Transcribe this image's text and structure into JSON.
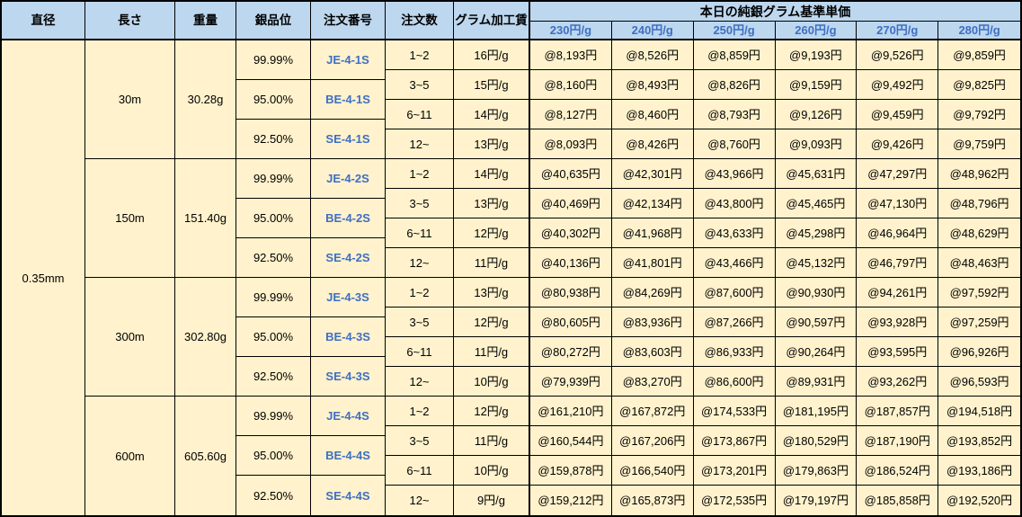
{
  "table": {
    "title": "本日の純銀グラム基準単価",
    "headers": {
      "diameter": "直径",
      "length": "長さ",
      "weight": "重量",
      "purity": "銀品位",
      "order_no": "注文番号",
      "order_qty": "注文数",
      "gram_fee": "グラム加工賃",
      "base_price_group": "本日の純銀グラム基準単価",
      "price_columns": [
        "230円/g",
        "240円/g",
        "250円/g",
        "260円/g",
        "270円/g",
        "280円/g"
      ]
    },
    "diameter_value": "0.35mm",
    "groups": [
      {
        "length": "30m",
        "weight": "30.28g",
        "purities": [
          {
            "purity": "99.99%",
            "order_no": "JE-4-1S"
          },
          {
            "purity": "95.00%",
            "order_no": "BE-4-1S"
          },
          {
            "purity": "92.50%",
            "order_no": "SE-4-1S"
          }
        ],
        "rows": [
          {
            "qty": "1~2",
            "fee": "16円/g",
            "prices": [
              "@8,193円",
              "@8,526円",
              "@8,859円",
              "@9,193円",
              "@9,526円",
              "@9,859円"
            ]
          },
          {
            "qty": "3~5",
            "fee": "15円/g",
            "prices": [
              "@8,160円",
              "@8,493円",
              "@8,826円",
              "@9,159円",
              "@9,492円",
              "@9,825円"
            ]
          },
          {
            "qty": "6~11",
            "fee": "14円/g",
            "prices": [
              "@8,127円",
              "@8,460円",
              "@8,793円",
              "@9,126円",
              "@9,459円",
              "@9,792円"
            ]
          },
          {
            "qty": "12~",
            "fee": "13円/g",
            "prices": [
              "@8,093円",
              "@8,426円",
              "@8,760円",
              "@9,093円",
              "@9,426円",
              "@9,759円"
            ]
          }
        ]
      },
      {
        "length": "150m",
        "weight": "151.40g",
        "purities": [
          {
            "purity": "99.99%",
            "order_no": "JE-4-2S"
          },
          {
            "purity": "95.00%",
            "order_no": "BE-4-2S"
          },
          {
            "purity": "92.50%",
            "order_no": "SE-4-2S"
          }
        ],
        "rows": [
          {
            "qty": "1~2",
            "fee": "14円/g",
            "prices": [
              "@40,635円",
              "@42,301円",
              "@43,966円",
              "@45,631円",
              "@47,297円",
              "@48,962円"
            ]
          },
          {
            "qty": "3~5",
            "fee": "13円/g",
            "prices": [
              "@40,469円",
              "@42,134円",
              "@43,800円",
              "@45,465円",
              "@47,130円",
              "@48,796円"
            ]
          },
          {
            "qty": "6~11",
            "fee": "12円/g",
            "prices": [
              "@40,302円",
              "@41,968円",
              "@43,633円",
              "@45,298円",
              "@46,964円",
              "@48,629円"
            ]
          },
          {
            "qty": "12~",
            "fee": "11円/g",
            "prices": [
              "@40,136円",
              "@41,801円",
              "@43,466円",
              "@45,132円",
              "@46,797円",
              "@48,463円"
            ]
          }
        ]
      },
      {
        "length": "300m",
        "weight": "302.80g",
        "purities": [
          {
            "purity": "99.99%",
            "order_no": "JE-4-3S"
          },
          {
            "purity": "95.00%",
            "order_no": "BE-4-3S"
          },
          {
            "purity": "92.50%",
            "order_no": "SE-4-3S"
          }
        ],
        "rows": [
          {
            "qty": "1~2",
            "fee": "13円/g",
            "prices": [
              "@80,938円",
              "@84,269円",
              "@87,600円",
              "@90,930円",
              "@94,261円",
              "@97,592円"
            ]
          },
          {
            "qty": "3~5",
            "fee": "12円/g",
            "prices": [
              "@80,605円",
              "@83,936円",
              "@87,266円",
              "@90,597円",
              "@93,928円",
              "@97,259円"
            ]
          },
          {
            "qty": "6~11",
            "fee": "11円/g",
            "prices": [
              "@80,272円",
              "@83,603円",
              "@86,933円",
              "@90,264円",
              "@93,595円",
              "@96,926円"
            ]
          },
          {
            "qty": "12~",
            "fee": "10円/g",
            "prices": [
              "@79,939円",
              "@83,270円",
              "@86,600円",
              "@89,931円",
              "@93,262円",
              "@96,593円"
            ]
          }
        ]
      },
      {
        "length": "600m",
        "weight": "605.60g",
        "purities": [
          {
            "purity": "99.99%",
            "order_no": "JE-4-4S"
          },
          {
            "purity": "95.00%",
            "order_no": "BE-4-4S"
          },
          {
            "purity": "92.50%",
            "order_no": "SE-4-4S"
          }
        ],
        "rows": [
          {
            "qty": "1~2",
            "fee": "12円/g",
            "prices": [
              "@161,210円",
              "@167,872円",
              "@174,533円",
              "@181,195円",
              "@187,857円",
              "@194,518円"
            ]
          },
          {
            "qty": "3~5",
            "fee": "11円/g",
            "prices": [
              "@160,544円",
              "@167,206円",
              "@173,867円",
              "@180,529円",
              "@187,190円",
              "@193,852円"
            ]
          },
          {
            "qty": "6~11",
            "fee": "10円/g",
            "prices": [
              "@159,878円",
              "@166,540円",
              "@173,201円",
              "@179,863円",
              "@186,524円",
              "@193,186円"
            ]
          },
          {
            "qty": "12~",
            "fee": "9円/g",
            "prices": [
              "@159,212円",
              "@165,873円",
              "@172,535円",
              "@179,197円",
              "@185,858円",
              "@192,520円"
            ]
          }
        ]
      }
    ],
    "colors": {
      "header_bg": "#BDD7EE",
      "body_bg": "#FFF2CC",
      "accent_blue": "#3E6FC4",
      "border": "#000000"
    }
  }
}
